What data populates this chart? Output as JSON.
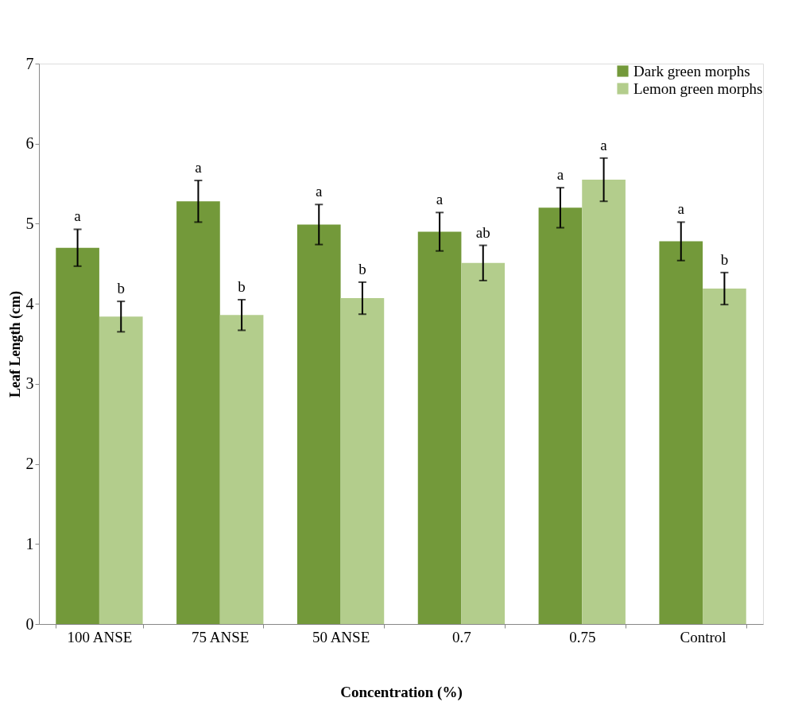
{
  "chart_data": {
    "type": "bar",
    "xlabel": "Concentration  (%)",
    "ylabel": "Leaf Length (cm)",
    "categories": [
      "100 ANSE",
      "75 ANSE",
      "50 ANSE",
      "0.7",
      "0.75",
      "Control"
    ],
    "ylim": [
      0,
      7
    ],
    "yticks": [
      0,
      1,
      2,
      3,
      4,
      5,
      6,
      7
    ],
    "grid": false,
    "legend": "top right",
    "series": [
      {
        "name": "Dark green morphs",
        "color": "#73993a",
        "values": [
          4.7,
          5.28,
          4.99,
          4.9,
          5.2,
          4.78
        ],
        "errors": [
          0.23,
          0.26,
          0.25,
          0.24,
          0.25,
          0.24
        ],
        "value_labels": [
          "a",
          "a",
          "a",
          "a",
          "a",
          "a"
        ]
      },
      {
        "name": "Lemon green morphs",
        "color": "#b3cd8c",
        "values": [
          3.84,
          3.86,
          4.07,
          4.51,
          5.55,
          4.19
        ],
        "errors": [
          0.19,
          0.19,
          0.2,
          0.22,
          0.27,
          0.2
        ],
        "value_labels": [
          "b",
          "b",
          "b",
          "ab",
          "a",
          "b"
        ]
      }
    ]
  }
}
